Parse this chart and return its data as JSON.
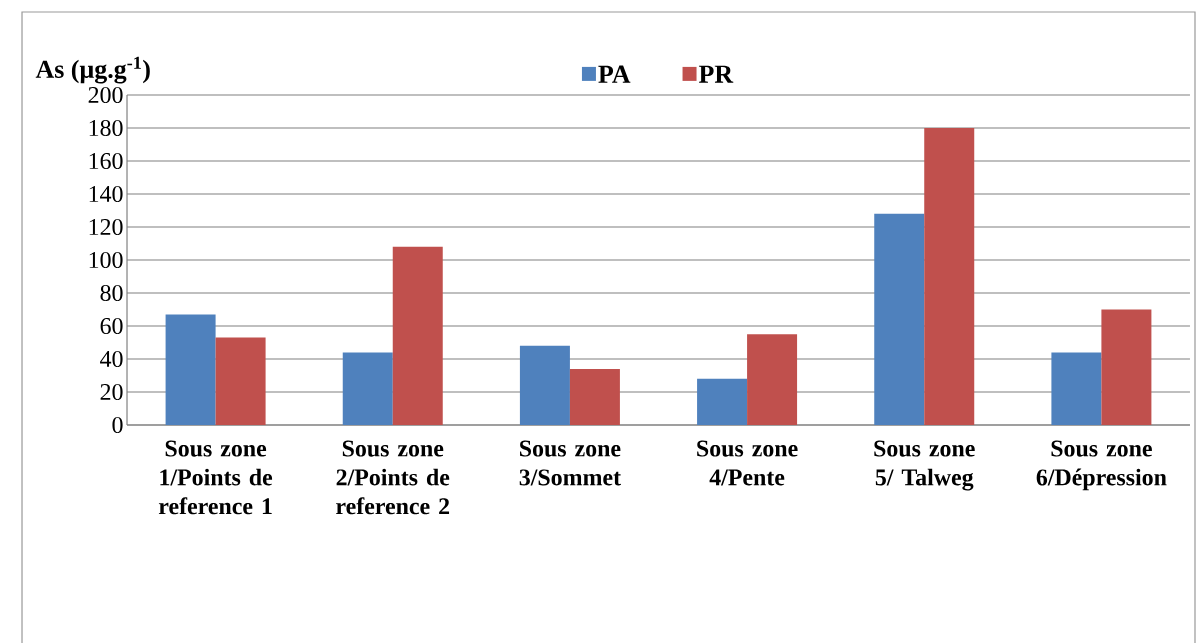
{
  "chart_data": {
    "type": "bar",
    "ylabel": "As (µg.g$^{-1}$)",
    "categories": [
      "Sous zone 1/Points de reference 1",
      "Sous zone 2/Points de reference 2",
      "Sous zone 3/Sommet",
      "Sous zone 4/Pente",
      "Sous zone 5/ Talweg",
      "Sous zone 6/Dépression"
    ],
    "series": [
      {
        "name": "PA",
        "color": "#4f81bd",
        "values": [
          67,
          44,
          48,
          28,
          128,
          44
        ]
      },
      {
        "name": "PR",
        "color": "#c0504d",
        "values": [
          53,
          108,
          34,
          55,
          180,
          70
        ]
      }
    ],
    "ylim": [
      0,
      200
    ],
    "yticks": [
      0,
      20,
      40,
      60,
      80,
      100,
      120,
      140,
      160,
      180,
      200
    ],
    "grid": "y",
    "legend": "top"
  }
}
